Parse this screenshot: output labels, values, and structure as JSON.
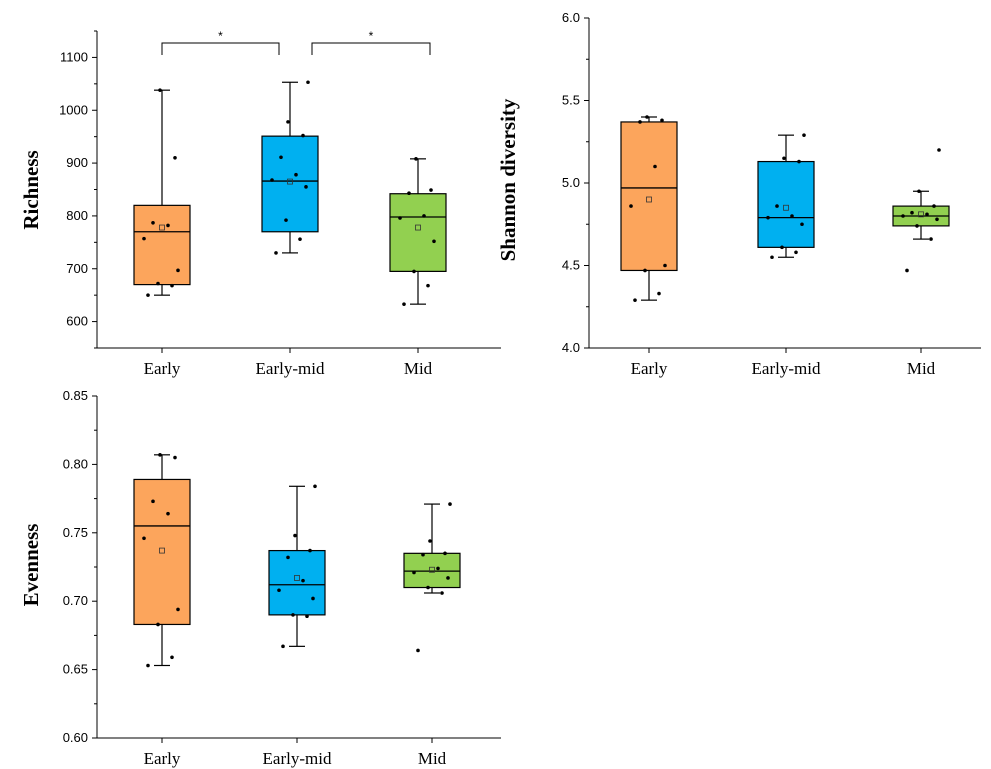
{
  "chart_data": [
    {
      "type": "box",
      "ylabel": "Richness",
      "ylim": [
        550,
        1150
      ],
      "yticks": [
        600,
        700,
        800,
        900,
        1000,
        1100
      ],
      "categories": [
        "Early",
        "Early-mid",
        "Mid"
      ],
      "colors": [
        "#fca55c",
        "#00b0f0",
        "#92d050"
      ],
      "boxes": [
        {
          "min": 650,
          "q1": 670,
          "median": 770,
          "q3": 820,
          "max": 1038,
          "mean": 778,
          "points": [
            650,
            668,
            672,
            697,
            757,
            782,
            787,
            910,
            1038
          ]
        },
        {
          "min": 730,
          "q1": 770,
          "median": 866,
          "q3": 951,
          "max": 1053,
          "mean": 865,
          "points": [
            730,
            756,
            792,
            855,
            868,
            878,
            911,
            952,
            978,
            1053
          ]
        },
        {
          "min": 633,
          "q1": 695,
          "median": 798,
          "q3": 842,
          "max": 908,
          "mean": 778,
          "points": [
            633,
            668,
            695,
            752,
            796,
            800,
            843,
            849,
            908
          ]
        }
      ],
      "significance": [
        {
          "from": 0,
          "to": 1,
          "label": "*"
        },
        {
          "from": 1,
          "to": 2,
          "label": "*"
        }
      ]
    },
    {
      "type": "box",
      "ylabel": "Shannon diversity",
      "ylim": [
        4.0,
        6.0
      ],
      "yticks": [
        "4.0",
        "4.5",
        "5.0",
        "5.5",
        "6.0"
      ],
      "categories": [
        "Early",
        "Early-mid",
        "Mid"
      ],
      "colors": [
        "#fca55c",
        "#00b0f0",
        "#92d050"
      ],
      "boxes": [
        {
          "min": 4.29,
          "q1": 4.47,
          "median": 4.97,
          "q3": 5.37,
          "max": 5.4,
          "mean": 4.9,
          "points": [
            4.29,
            4.33,
            4.47,
            4.5,
            4.86,
            5.1,
            5.37,
            5.38,
            5.4
          ]
        },
        {
          "min": 4.55,
          "q1": 4.61,
          "median": 4.79,
          "q3": 5.13,
          "max": 5.29,
          "mean": 4.85,
          "points": [
            4.55,
            4.58,
            4.61,
            4.75,
            4.79,
            4.8,
            4.86,
            5.13,
            5.15,
            5.29
          ]
        },
        {
          "min": 4.66,
          "q1": 4.74,
          "median": 4.8,
          "q3": 4.86,
          "max": 4.95,
          "mean": 4.81,
          "points": [
            4.47,
            4.66,
            4.74,
            4.78,
            4.8,
            4.81,
            4.82,
            4.86,
            4.95,
            5.2
          ]
        }
      ]
    },
    {
      "type": "box",
      "ylabel": "Evenness",
      "ylim": [
        0.6,
        0.85
      ],
      "yticks": [
        "0.60",
        "0.65",
        "0.70",
        "0.75",
        "0.80",
        "0.85"
      ],
      "categories": [
        "Early",
        "Early-mid",
        "Mid"
      ],
      "colors": [
        "#fca55c",
        "#00b0f0",
        "#92d050"
      ],
      "boxes": [
        {
          "min": 0.653,
          "q1": 0.683,
          "median": 0.755,
          "q3": 0.789,
          "max": 0.807,
          "mean": 0.737,
          "points": [
            0.653,
            0.659,
            0.683,
            0.694,
            0.746,
            0.764,
            0.773,
            0.805,
            0.807
          ]
        },
        {
          "min": 0.667,
          "q1": 0.69,
          "median": 0.712,
          "q3": 0.737,
          "max": 0.784,
          "mean": 0.717,
          "points": [
            0.667,
            0.689,
            0.69,
            0.702,
            0.708,
            0.715,
            0.732,
            0.737,
            0.748,
            0.784
          ]
        },
        {
          "min": 0.706,
          "q1": 0.71,
          "median": 0.722,
          "q3": 0.735,
          "max": 0.771,
          "mean": 0.723,
          "points": [
            0.664,
            0.706,
            0.71,
            0.717,
            0.721,
            0.724,
            0.734,
            0.735,
            0.744,
            0.771
          ]
        }
      ]
    }
  ]
}
